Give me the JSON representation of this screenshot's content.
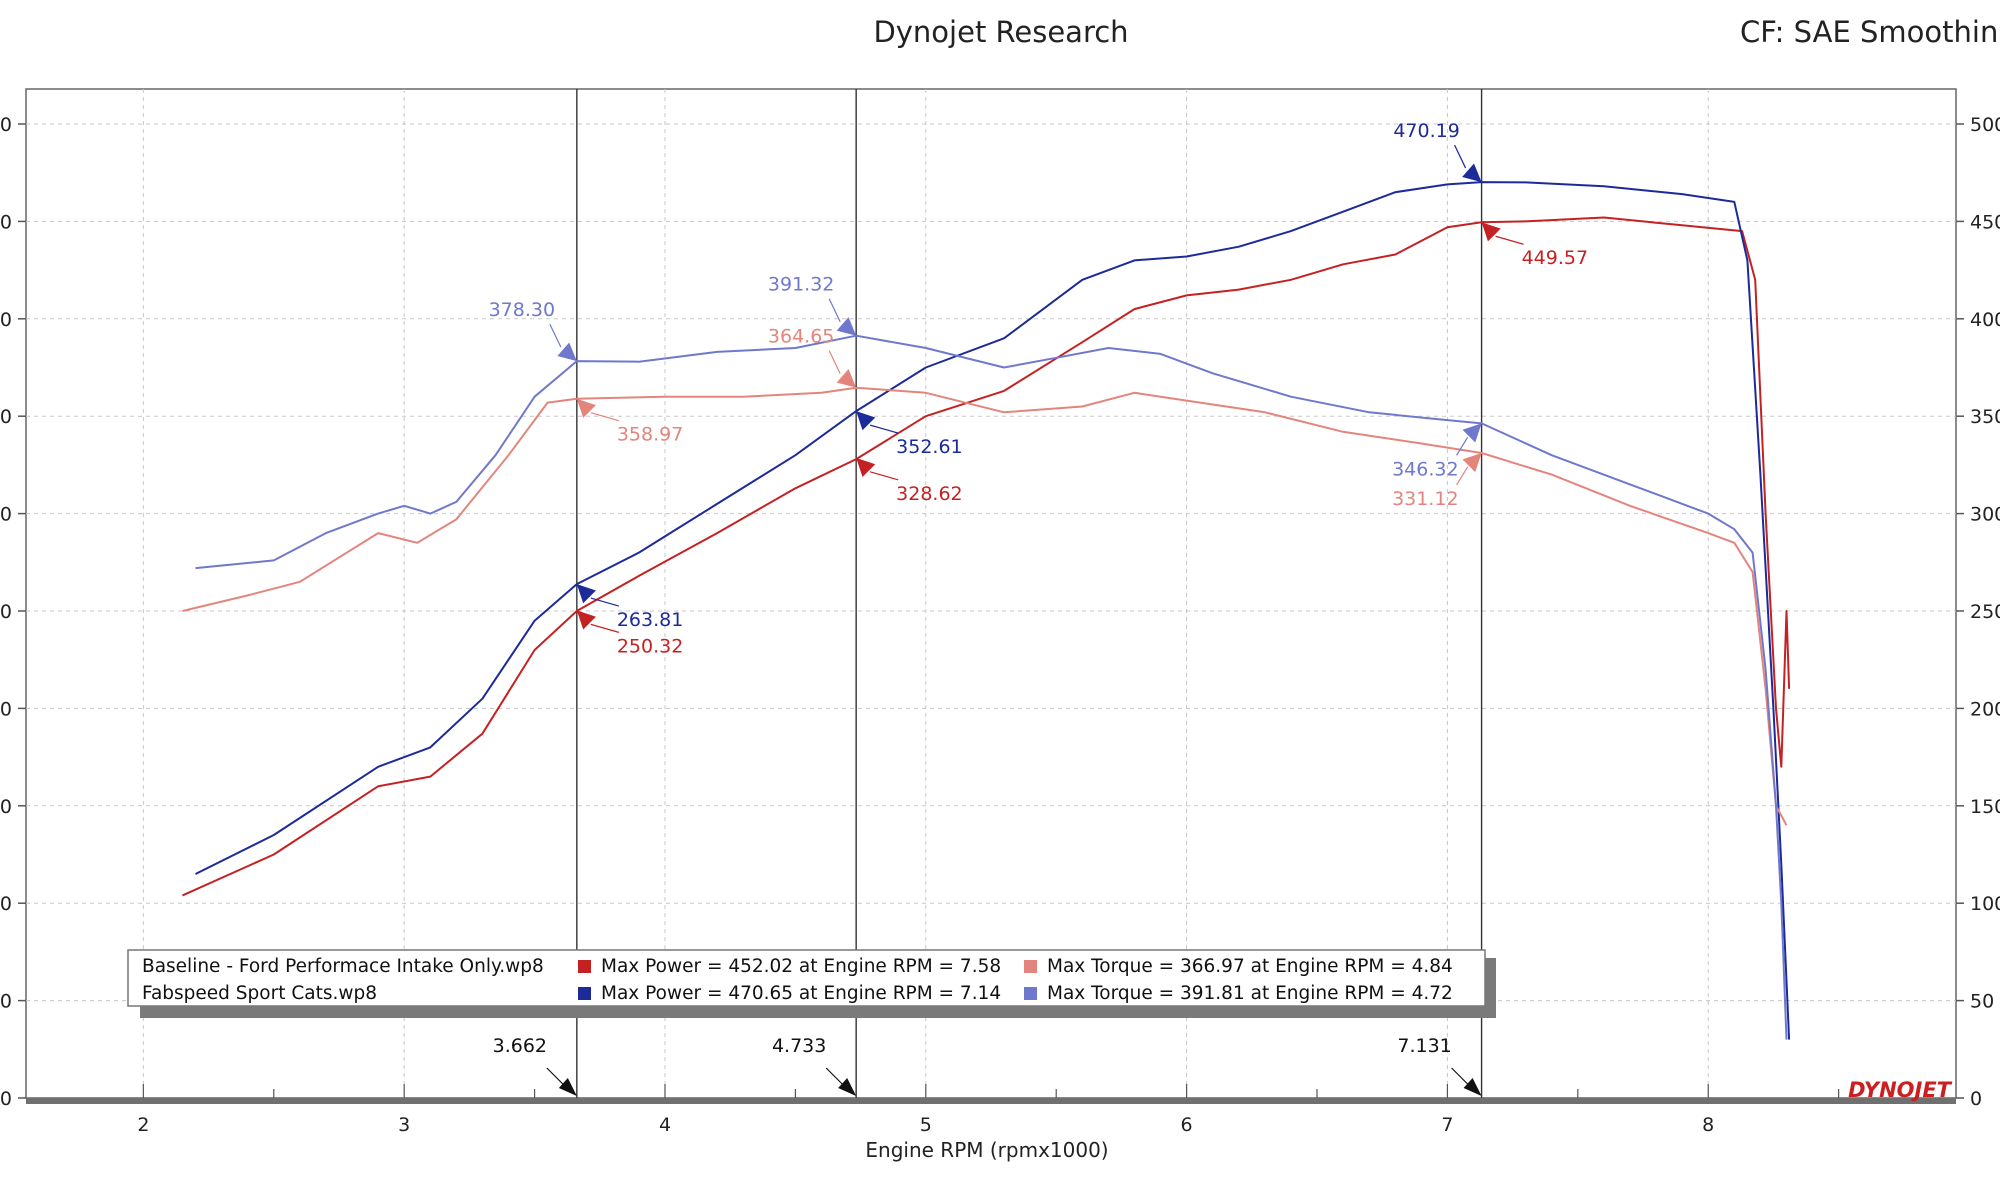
{
  "header": {
    "title": "Dynojet Research",
    "correction": "CF: SAE Smoothing"
  },
  "colors": {
    "blue_dark": "#1c2a9a",
    "blue_light": "#6f78cc",
    "red_dark": "#c42222",
    "red_light": "#e3857c",
    "grid": "#c8c8c8",
    "axis": "#555555"
  },
  "chart_data": {
    "type": "line",
    "title": "Dynojet Research",
    "subtitle": "CF: SAE Smoothing",
    "xlabel": "Engine RPM (rpmx1000)",
    "ylabel": "",
    "xlim": [
      1.55,
      8.95
    ],
    "ylim": [
      0,
      500
    ],
    "xticks": [
      "2",
      "3",
      "4",
      "5",
      "6",
      "7",
      "8"
    ],
    "yticks": [
      "0",
      "50",
      "100",
      "150",
      "200",
      "250",
      "300",
      "350",
      "400",
      "450",
      "500"
    ],
    "yticks_left": [
      "0",
      "0",
      "0",
      "0",
      "0",
      "0",
      "0",
      "0",
      "0",
      "0",
      "0"
    ],
    "yticks_right": [
      "0",
      "50",
      "100",
      "150",
      "200",
      "250",
      "300",
      "350",
      "400",
      "450",
      "500"
    ],
    "grid": true,
    "series": [
      {
        "name": "Baseline - Ford Performace Intake Only.wp8 Power",
        "color": "#c42222",
        "x": [
          2.15,
          2.5,
          2.9,
          3.1,
          3.3,
          3.5,
          3.662,
          3.9,
          4.2,
          4.5,
          4.733,
          5.0,
          5.3,
          5.6,
          5.8,
          6.0,
          6.2,
          6.4,
          6.6,
          6.8,
          7.0,
          7.131,
          7.3,
          7.6,
          7.9,
          8.13,
          8.18,
          8.22,
          8.26,
          8.28,
          8.3,
          8.31
        ],
        "y": [
          104,
          125,
          160,
          165,
          187,
          230,
          250,
          268,
          290,
          313,
          328,
          350,
          363,
          388,
          405,
          412,
          415,
          420,
          428,
          433,
          447,
          449.57,
          450,
          452,
          448,
          445,
          420,
          300,
          200,
          170,
          250,
          210
        ]
      },
      {
        "name": "Fabspeed Sport Cats.wp8 Power",
        "color": "#1c2a9a",
        "x": [
          2.2,
          2.5,
          2.9,
          3.1,
          3.3,
          3.5,
          3.662,
          3.9,
          4.2,
          4.5,
          4.733,
          5.0,
          5.3,
          5.6,
          5.8,
          6.0,
          6.2,
          6.4,
          6.6,
          6.8,
          7.0,
          7.131,
          7.3,
          7.6,
          7.9,
          8.1,
          8.15,
          8.2,
          8.25,
          8.28,
          8.3,
          8.31
        ],
        "y": [
          115,
          135,
          170,
          180,
          205,
          245,
          263.81,
          280,
          305,
          330,
          352.61,
          375,
          390,
          420,
          430,
          432,
          437,
          445,
          455,
          465,
          469,
          470.19,
          470,
          468,
          464,
          460,
          430,
          320,
          200,
          120,
          60,
          30
        ]
      },
      {
        "name": "Baseline - Ford Performace Intake Only.wp8 Torque",
        "color": "#e3857c",
        "x": [
          2.15,
          2.4,
          2.6,
          2.9,
          3.05,
          3.2,
          3.4,
          3.55,
          3.662,
          4.0,
          4.3,
          4.6,
          4.733,
          5.0,
          5.3,
          5.6,
          5.8,
          6.0,
          6.3,
          6.6,
          6.9,
          7.131,
          7.4,
          7.7,
          8.0,
          8.1,
          8.17,
          8.22,
          8.26,
          8.28,
          8.3
        ],
        "y": [
          250,
          258,
          265,
          290,
          285,
          297,
          330,
          357,
          358.97,
          360,
          360,
          362,
          364.65,
          362,
          352,
          355,
          362,
          358,
          352,
          342,
          336,
          331.12,
          320,
          304,
          290,
          285,
          270,
          210,
          150,
          145,
          140
        ]
      },
      {
        "name": "Fabspeed Sport Cats.wp8 Torque",
        "color": "#6f78cc",
        "x": [
          2.2,
          2.5,
          2.7,
          2.9,
          3.0,
          3.1,
          3.2,
          3.35,
          3.5,
          3.662,
          3.9,
          4.2,
          4.5,
          4.733,
          5.0,
          5.3,
          5.5,
          5.7,
          5.9,
          6.1,
          6.4,
          6.7,
          7.0,
          7.131,
          7.4,
          7.7,
          8.0,
          8.1,
          8.17,
          8.22,
          8.26,
          8.28,
          8.3
        ],
        "y": [
          272,
          276,
          290,
          300,
          304,
          300,
          306,
          330,
          360,
          378.3,
          378,
          383,
          385,
          391.32,
          385,
          375,
          380,
          385,
          382,
          372,
          360,
          352,
          348,
          346.32,
          330,
          315,
          300,
          292,
          280,
          220,
          150,
          100,
          30
        ]
      }
    ],
    "cursor_lines": [
      {
        "x": 3.662,
        "label": "3.662"
      },
      {
        "x": 4.733,
        "label": "4.733"
      },
      {
        "x": 7.131,
        "label": "7.131"
      }
    ],
    "annotations": [
      {
        "x": 3.662,
        "y": 378.3,
        "label": "378.30",
        "series": 3,
        "side": "above"
      },
      {
        "x": 3.662,
        "y": 358.97,
        "label": "358.97",
        "series": 2,
        "side": "below"
      },
      {
        "x": 3.662,
        "y": 263.81,
        "label": "263.81",
        "series": 1,
        "side": "below"
      },
      {
        "x": 3.662,
        "y": 250.32,
        "label": "250.32",
        "series": 0,
        "side": "below"
      },
      {
        "x": 4.733,
        "y": 391.32,
        "label": "391.32",
        "series": 3,
        "side": "above"
      },
      {
        "x": 4.733,
        "y": 364.65,
        "label": "364.65",
        "series": 2,
        "side": "above"
      },
      {
        "x": 4.733,
        "y": 352.61,
        "label": "352.61",
        "series": 1,
        "side": "below"
      },
      {
        "x": 4.733,
        "y": 328.62,
        "label": "328.62",
        "series": 0,
        "side": "below"
      },
      {
        "x": 7.131,
        "y": 470.19,
        "label": "470.19",
        "series": 1,
        "side": "above"
      },
      {
        "x": 7.131,
        "y": 449.57,
        "label": "449.57",
        "series": 0,
        "side": "below"
      },
      {
        "x": 7.131,
        "y": 346.32,
        "label": "346.32",
        "series": 3,
        "side": "below-left"
      },
      {
        "x": 7.131,
        "y": 331.12,
        "label": "331.12",
        "series": 2,
        "side": "below-left"
      }
    ],
    "legend": {
      "placement": "bottom-left",
      "rows": [
        {
          "file": "Baseline - Ford Performace Intake Only.wp8",
          "power": "Max Power = 452.02 at Engine RPM = 7.58",
          "power_color": "#c42222",
          "torque": "Max Torque = 366.97 at Engine RPM = 4.84",
          "torque_color": "#e3857c"
        },
        {
          "file": "Fabspeed Sport Cats.wp8",
          "power": "Max Power = 470.65 at Engine RPM = 7.14",
          "power_color": "#1c2a9a",
          "torque": "Max Torque = 391.81 at Engine RPM = 4.72",
          "torque_color": "#6f78cc"
        }
      ]
    },
    "logo": "DYNOJET"
  }
}
